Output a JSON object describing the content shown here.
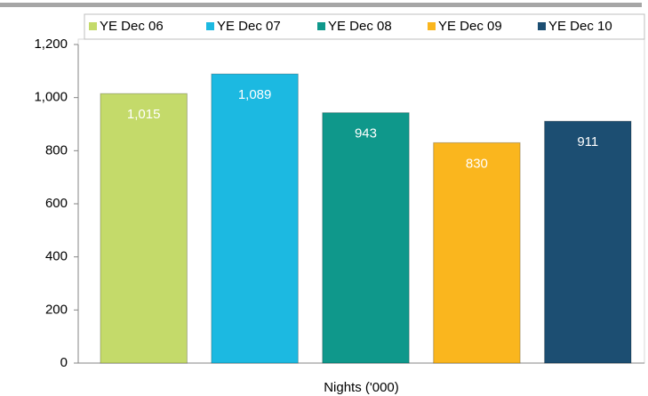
{
  "chart_data": {
    "type": "bar",
    "categories": [
      "Nights ('000)"
    ],
    "series": [
      {
        "name": "YE Dec 06",
        "color": "#c4da6a",
        "values": [
          1015
        ],
        "value_labels": [
          "1,015"
        ]
      },
      {
        "name": "YE Dec 07",
        "color": "#1cb9e1",
        "values": [
          1089
        ],
        "value_labels": [
          "1,089"
        ]
      },
      {
        "name": "YE Dec 08",
        "color": "#0f988b",
        "values": [
          943
        ]
      },
      {
        "name": "YE Dec 09",
        "color": "#fab61e",
        "values": [
          830
        ]
      },
      {
        "name": "YE Dec 10",
        "color": "#1c4e72",
        "values": [
          911
        ]
      }
    ],
    "ylim": [
      0,
      1200
    ],
    "yticks": [
      0,
      200,
      400,
      600,
      800,
      {
        "value": 1000,
        "label": "1,000"
      },
      {
        "value": 1200,
        "label": "1,200"
      }
    ],
    "legend": "top"
  }
}
